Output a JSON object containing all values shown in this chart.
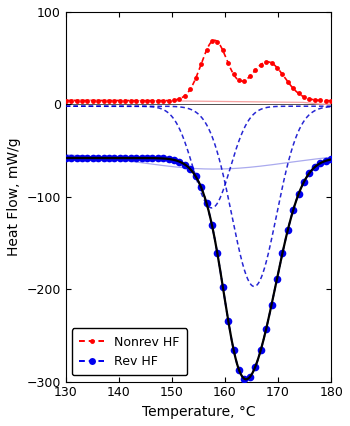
{
  "xlabel": "Temperature, °C",
  "ylabel": "Heat Flow, mW/g",
  "xlim": [
    130,
    180
  ],
  "ylim": [
    -300,
    100
  ],
  "yticks": [
    -300,
    -200,
    -100,
    0,
    100
  ],
  "xticks": [
    130,
    140,
    150,
    160,
    170,
    180
  ],
  "legend_entries": [
    "Nonrev HF",
    "Rev HF"
  ],
  "nonrev": {
    "peak1_mu": 158.0,
    "peak1_sigma": 2.5,
    "peak1_amp": 65,
    "peak2_mu": 168.0,
    "peak2_sigma": 3.2,
    "peak2_amp": 42,
    "baseline": 4.0
  },
  "rev": {
    "baseline": -58,
    "peak_mu": 165.0,
    "peak_sigma": 4.8,
    "peak_amp": -215,
    "shoulder_mu": 162.0,
    "shoulder_sigma": 2.5,
    "shoulder_amp": -40
  },
  "rev_comp1": {
    "mu": 157.5,
    "sigma": 3.5,
    "amp": -110,
    "base": -2
  },
  "rev_comp2": {
    "mu": 165.5,
    "sigma": 4.2,
    "amp": -195,
    "base": -2
  },
  "light_red": {
    "base": 5.0,
    "slope": -0.06
  },
  "light_blue": {
    "base": -52,
    "dip_mu": 158.0,
    "dip_sigma": 14,
    "dip_amp": -18
  },
  "n_dots": 50,
  "dot_size_red": 3.5,
  "dot_size_blue": 5.5
}
